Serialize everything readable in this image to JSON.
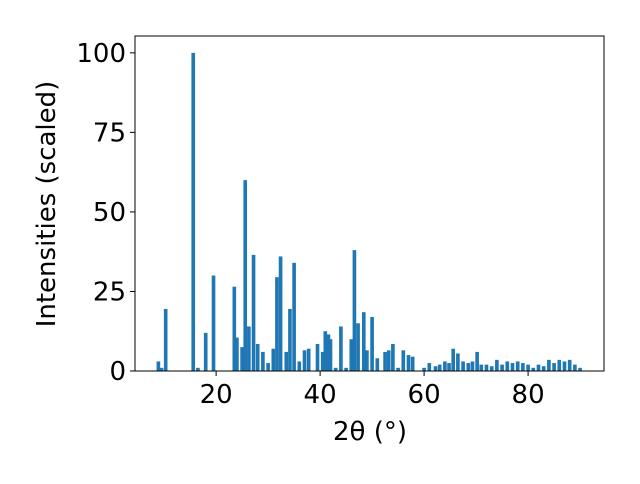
{
  "chart_data": {
    "type": "bar",
    "x_label": "2θ (°)",
    "y_label": "Intensities (scaled)",
    "color": "#1f77b4",
    "bar_width": 0.7,
    "x": [
      8.9,
      9.5,
      10.3,
      15.6,
      16.5,
      18,
      19.5,
      23.5,
      24,
      25,
      25.6,
      26.3,
      27.2,
      28,
      29,
      30,
      31,
      31.7,
      32.4,
      33.5,
      34.2,
      35,
      36,
      37,
      37.8,
      39.5,
      40.5,
      41,
      41.6,
      42,
      43,
      44,
      45,
      46,
      46.6,
      47.3,
      48.4,
      49,
      50,
      51,
      52.5,
      53.2,
      54,
      55,
      56,
      57,
      57.8,
      60,
      61,
      62.2,
      63,
      64,
      64.8,
      65.6,
      66.5,
      67.5,
      68.5,
      69.3,
      70.2,
      71,
      72,
      73,
      74,
      75,
      76,
      77,
      78,
      79,
      80,
      81,
      82,
      83,
      84,
      85,
      86,
      87,
      88,
      89,
      90
    ],
    "values": [
      3,
      1,
      19.5,
      100,
      1,
      12,
      30,
      26.5,
      10.5,
      7.5,
      60,
      14,
      36.5,
      8.5,
      6,
      2.5,
      7,
      29.5,
      36,
      6,
      19.5,
      34,
      3,
      6.5,
      7,
      8.5,
      6,
      12.5,
      11.5,
      10,
      1,
      14,
      1,
      10,
      38,
      15,
      18.5,
      6.5,
      17,
      4,
      6,
      6.5,
      8.5,
      1,
      6.5,
      5,
      4.5,
      1,
      2.5,
      1.5,
      2,
      3,
      2.5,
      7,
      5.5,
      3,
      2.5,
      3,
      6,
      2,
      2,
      1.5,
      3.5,
      2,
      3,
      2.5,
      3,
      2.5,
      2,
      1,
      2,
      1.5,
      3.5,
      2.5,
      3.5,
      3,
      3.5,
      2,
      1
    ],
    "xlim": [
      4.4,
      94.6
    ],
    "ylim": [
      0,
      105.3
    ],
    "xticks": [
      20,
      40,
      60,
      80
    ],
    "yticks": [
      0,
      25,
      50,
      75,
      100
    ]
  }
}
